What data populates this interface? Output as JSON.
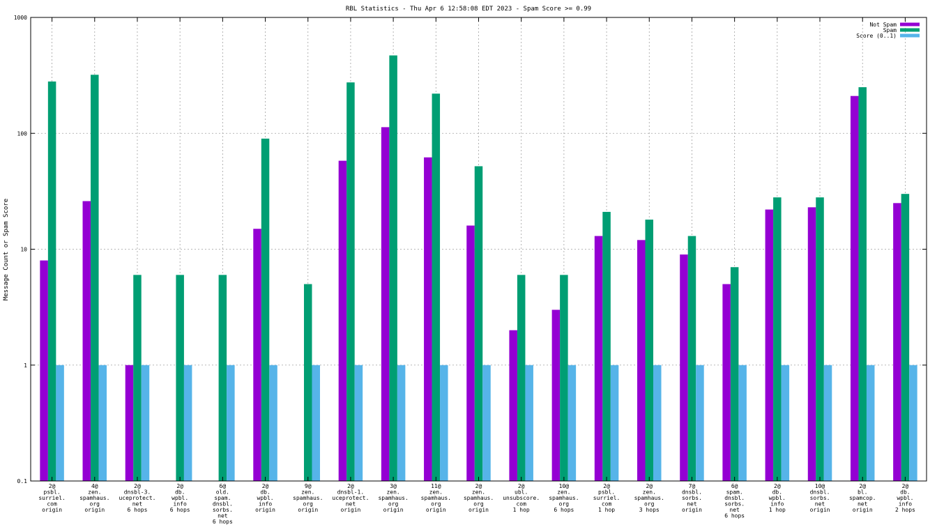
{
  "chart_data": {
    "type": "bar",
    "title": "RBL Statistics - Thu Apr  6 12:58:08 EDT 2023 - Spam Score >= 0.99",
    "xlabel": "",
    "ylabel": "Message Count or Spam Score",
    "yscale": "log",
    "ylim": [
      0.1,
      1000
    ],
    "yticks": [
      {
        "value": 1000,
        "label": "1000"
      },
      {
        "value": 100,
        "label": "100"
      },
      {
        "value": 10,
        "label": "10"
      },
      {
        "value": 1,
        "label": "1"
      },
      {
        "value": 0.1,
        "label": "0.1"
      }
    ],
    "grid": true,
    "legend_position": "top-right",
    "categories": [
      [
        "2@",
        "psbl.",
        "surriel.",
        "com",
        "origin"
      ],
      [
        "4@",
        "zen.",
        "spamhaus.",
        "org",
        "origin"
      ],
      [
        "2@",
        "dnsbl-3.",
        "uceprotect.",
        "net",
        "6 hops"
      ],
      [
        "2@",
        "db.",
        "wpbl.",
        "info",
        "6 hops"
      ],
      [
        "6@",
        "old.",
        "spam.",
        "dnsbl.",
        "sorbs.",
        "net",
        "6 hops"
      ],
      [
        "2@",
        "db.",
        "wpbl.",
        "info",
        "origin"
      ],
      [
        "9@",
        "zen.",
        "spamhaus.",
        "org",
        "origin"
      ],
      [
        "2@",
        "dnsbl-1.",
        "uceprotect.",
        "net",
        "origin"
      ],
      [
        "3@",
        "zen.",
        "spamhaus.",
        "org",
        "origin"
      ],
      [
        "11@",
        "zen.",
        "spamhaus.",
        "org",
        "origin"
      ],
      [
        "2@",
        "zen.",
        "spamhaus.",
        "org",
        "origin"
      ],
      [
        "2@",
        "ubl.",
        "unsubscore.",
        "com",
        "1 hop"
      ],
      [
        "10@",
        "zen.",
        "spamhaus.",
        "org",
        "6 hops"
      ],
      [
        "2@",
        "psbl.",
        "surriel.",
        "com",
        "1 hop"
      ],
      [
        "2@",
        "zen.",
        "spamhaus.",
        "org",
        "3 hops"
      ],
      [
        "7@",
        "dnsbl.",
        "sorbs.",
        "net",
        "origin"
      ],
      [
        "6@",
        "spam.",
        "dnsbl.",
        "sorbs.",
        "net",
        "6 hops"
      ],
      [
        "2@",
        "db.",
        "wpbl.",
        "info",
        "1 hop"
      ],
      [
        "10@",
        "dnsbl.",
        "sorbs.",
        "net",
        "origin"
      ],
      [
        "2@",
        "bl.",
        "spamcop.",
        "net",
        "origin"
      ],
      [
        "2@",
        "db.",
        "wpbl.",
        "info",
        "2 hops"
      ]
    ],
    "series": [
      {
        "name": "Not Spam",
        "color": "#9400d3",
        "values": [
          8,
          26,
          1,
          0,
          0,
          15,
          0,
          58,
          113,
          62,
          16,
          2,
          3,
          13,
          12,
          9,
          5,
          22,
          23,
          210,
          25
        ]
      },
      {
        "name": "Spam",
        "color": "#009e73",
        "values": [
          280,
          320,
          6,
          6,
          6,
          90,
          5,
          275,
          470,
          220,
          52,
          6,
          6,
          21,
          18,
          13,
          7,
          28,
          28,
          250,
          30
        ]
      },
      {
        "name": "Score (0..1)",
        "color": "#56b4e9",
        "values": [
          1,
          1,
          1,
          1,
          1,
          1,
          1,
          1,
          1,
          1,
          1,
          1,
          1,
          1,
          1,
          1,
          1,
          1,
          1,
          1,
          1
        ]
      }
    ]
  }
}
